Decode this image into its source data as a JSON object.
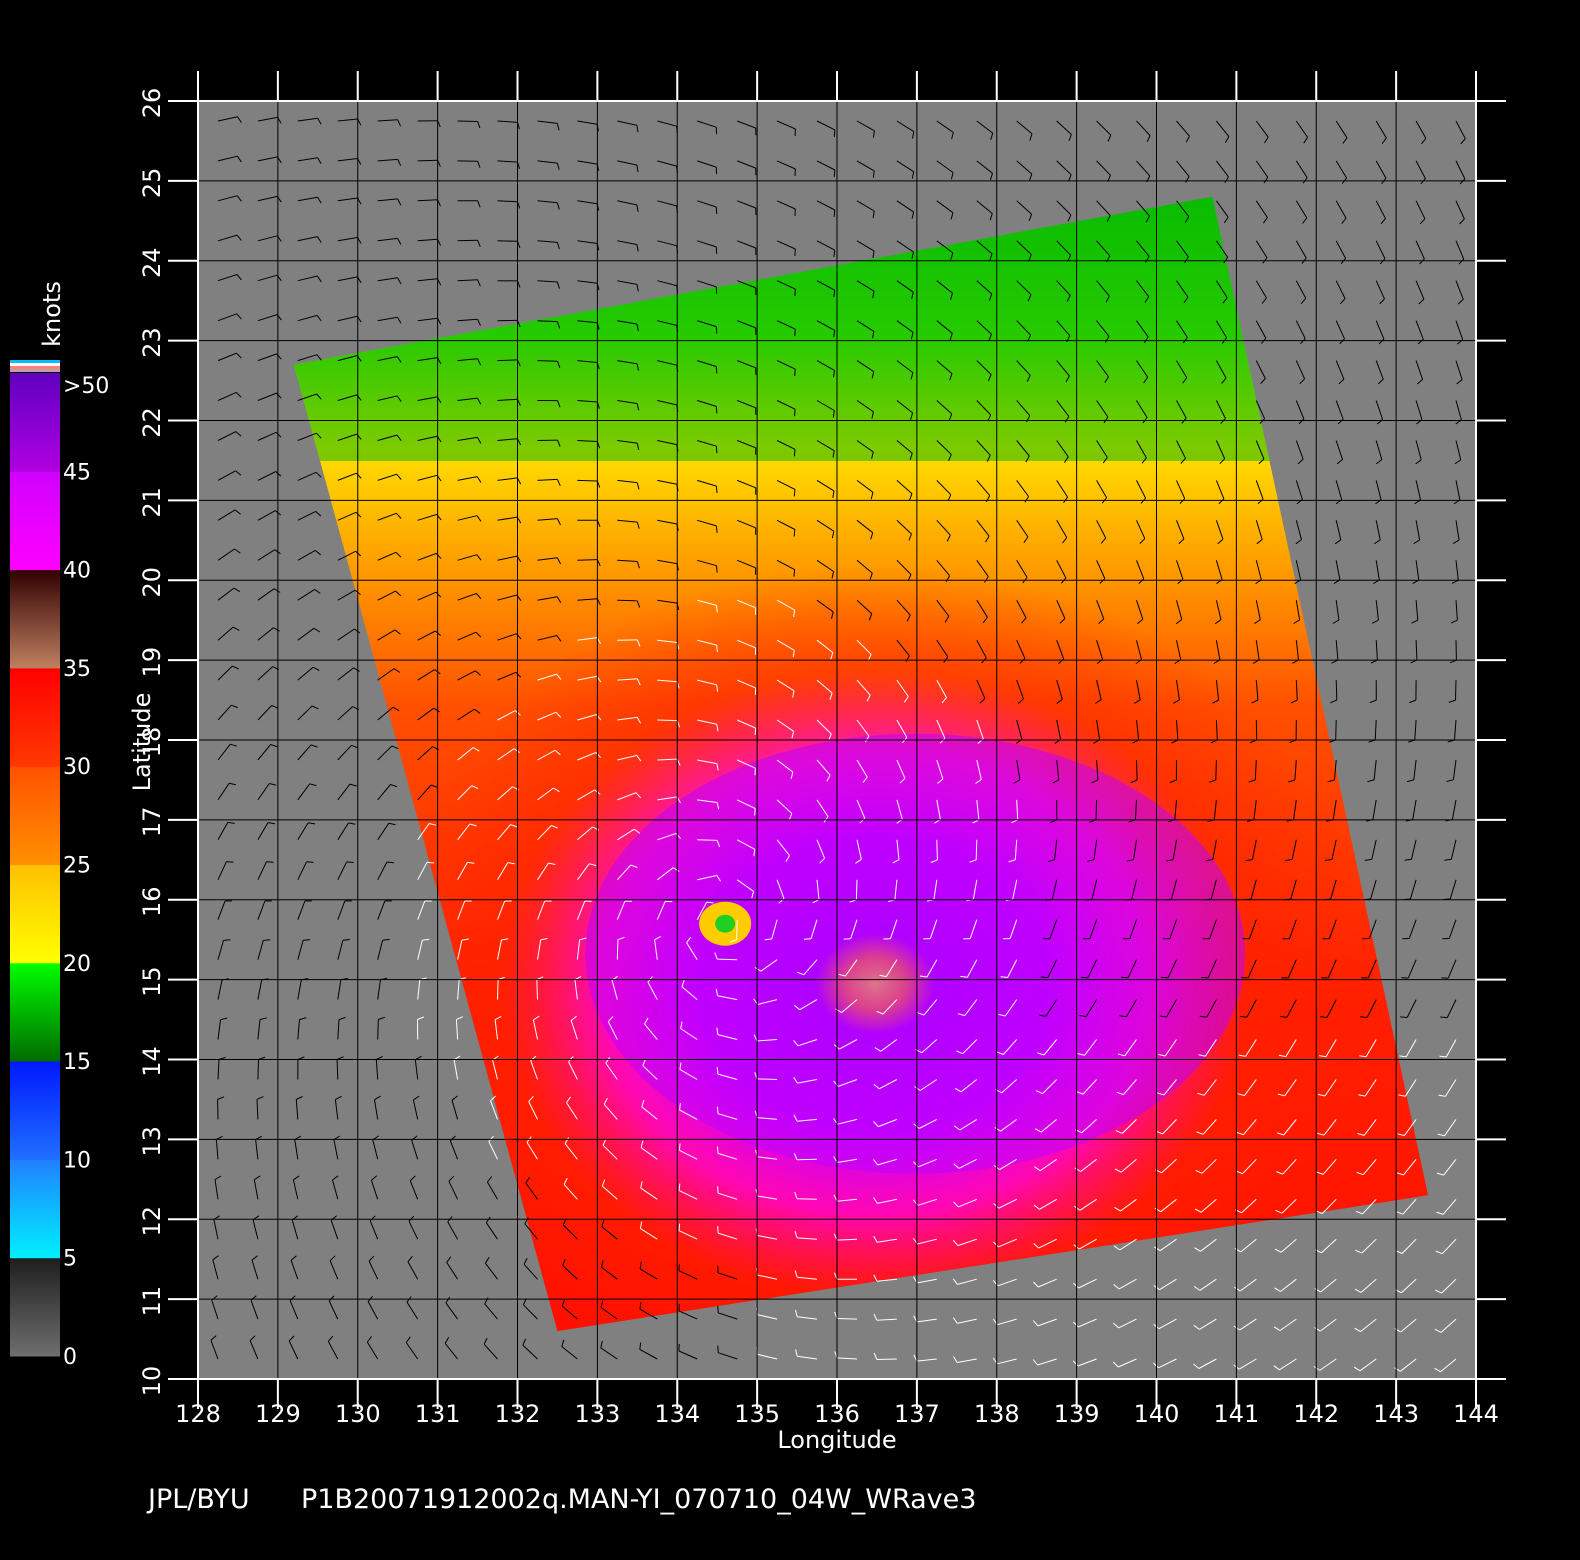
{
  "map": {
    "x_label": "Longitude",
    "y_label": "Latitude",
    "x_ticks": [
      "128",
      "129",
      "130",
      "131",
      "132",
      "133",
      "134",
      "135",
      "136",
      "137",
      "138",
      "139",
      "140",
      "141",
      "142",
      "143",
      "144"
    ],
    "y_ticks": [
      "10",
      "11",
      "12",
      "13",
      "14",
      "15",
      "16",
      "17",
      "18",
      "19",
      "20",
      "21",
      "22",
      "23",
      "24",
      "25",
      "26"
    ],
    "lon_range": [
      128,
      144
    ],
    "lat_range": [
      10,
      26
    ],
    "background_color": "#808080",
    "grid_color": "#000000",
    "storm_center": {
      "lon": 134.6,
      "lat": 15.7
    },
    "swath_corners_latlon": [
      {
        "lon": 129.2,
        "lat": 22.7
      },
      {
        "lon": 140.7,
        "lat": 24.8
      },
      {
        "lon": 143.4,
        "lat": 12.3
      },
      {
        "lon": 132.5,
        "lat": 10.6
      }
    ]
  },
  "colorbar": {
    "unit": "knots",
    "labels": [
      "0",
      "5",
      "10",
      "15",
      "20",
      "25",
      "30",
      "35",
      "40",
      "45",
      ">50"
    ],
    "segments": [
      {
        "from": 0,
        "to": 5,
        "colors": [
          "#6e6e6e",
          "#1e1e1e"
        ]
      },
      {
        "from": 5,
        "to": 10,
        "colors": [
          "#00f0ff",
          "#2080ff"
        ]
      },
      {
        "from": 10,
        "to": 15,
        "colors": [
          "#2070ff",
          "#0018ff"
        ]
      },
      {
        "from": 15,
        "to": 20,
        "colors": [
          "#006a00",
          "#00ff00"
        ]
      },
      {
        "from": 20,
        "to": 25,
        "colors": [
          "#ffff00",
          "#ffc000"
        ]
      },
      {
        "from": 25,
        "to": 30,
        "colors": [
          "#ff9000",
          "#ff5000"
        ]
      },
      {
        "from": 30,
        "to": 35,
        "colors": [
          "#ff3800",
          "#ff0000"
        ]
      },
      {
        "from": 35,
        "to": 40,
        "colors": [
          "#c08060",
          "#300000"
        ]
      },
      {
        "from": 40,
        "to": 45,
        "colors": [
          "#ff00ff",
          "#d000ff"
        ]
      },
      {
        "from": 45,
        "to": 50,
        "colors": [
          "#b000e0",
          "#6000c0"
        ]
      }
    ],
    "top_stripes": [
      "#00c0ff",
      "#ffffff",
      "#ff8080",
      "#c0a0a0"
    ]
  },
  "footer": {
    "source": "JPL/BYU",
    "product": "P1B20071912002q.MAN-YI_070710_04W_WRave3"
  }
}
